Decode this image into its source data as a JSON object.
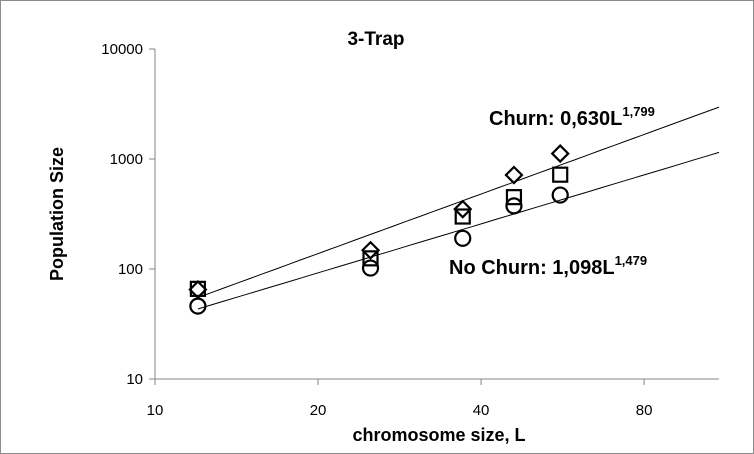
{
  "chart_data": {
    "type": "scatter",
    "title": "3-Trap",
    "xlabel": "chromosome size, L",
    "ylabel": "Population Size",
    "x_scale": "log",
    "y_scale": "log",
    "xlim": [
      10,
      110
    ],
    "ylim": [
      10,
      10000
    ],
    "x_ticks": [
      10,
      20,
      40,
      80
    ],
    "x_tick_labels": [
      "10",
      "20",
      "40",
      "80"
    ],
    "y_ticks": [
      10,
      100,
      1000,
      10000
    ],
    "y_tick_labels": [
      "10",
      "100",
      "1000",
      "10000"
    ],
    "grid": false,
    "legend": "none",
    "series": [
      {
        "marker": "diamond",
        "x": [
          12,
          25,
          37,
          46,
          56
        ],
        "y": [
          65,
          148,
          350,
          715,
          1120
        ]
      },
      {
        "marker": "square",
        "x": [
          12,
          25,
          37,
          46,
          56
        ],
        "y": [
          66,
          125,
          300,
          450,
          720
        ]
      },
      {
        "marker": "circle",
        "x": [
          12,
          25,
          37,
          46,
          56
        ],
        "y": [
          46,
          102,
          190,
          375,
          470
        ]
      }
    ],
    "trendlines": [
      {
        "coef": 0.63,
        "exponent": 1.799,
        "x_range": [
          12,
          110
        ]
      },
      {
        "coef": 1.098,
        "exponent": 1.479,
        "x_range": [
          12,
          110
        ]
      }
    ],
    "annotations": [
      {
        "id": "churn",
        "text": "Churn: 0,630L",
        "sup": "1,799"
      },
      {
        "id": "nochurn",
        "text": "No Churn: 1,098L",
        "sup": "1,479"
      }
    ]
  }
}
